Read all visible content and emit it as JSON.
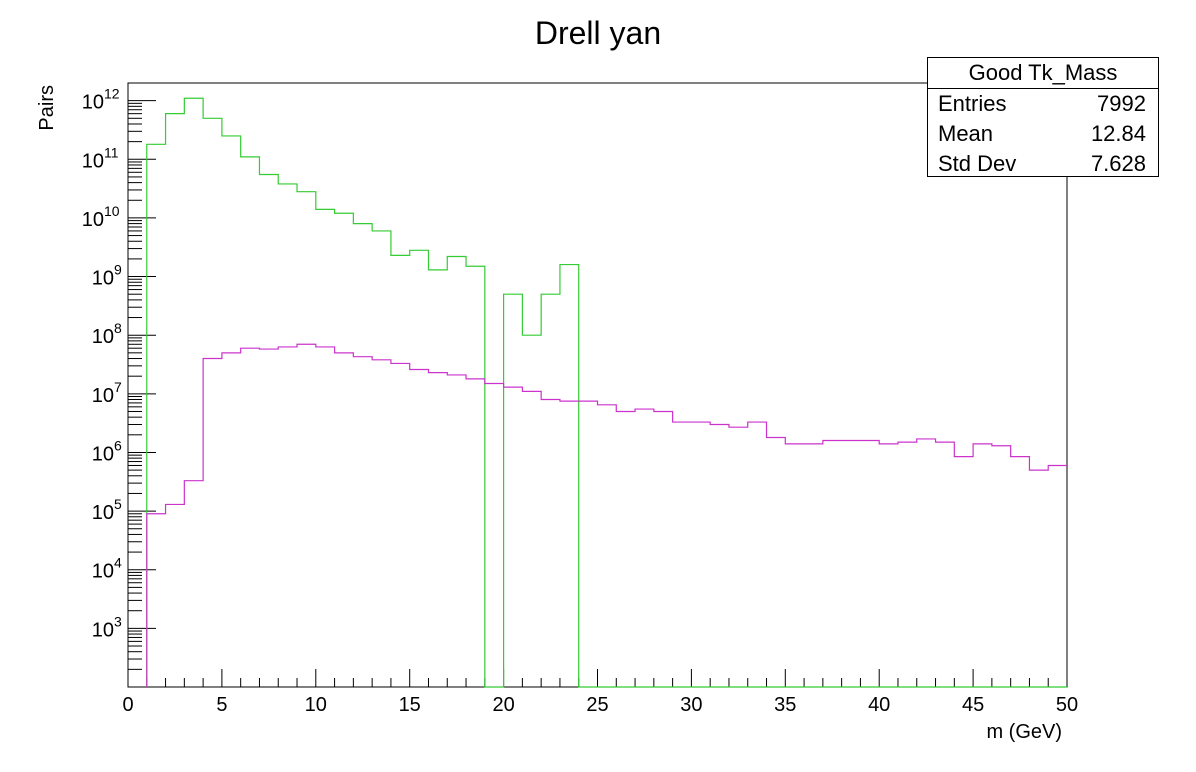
{
  "chart_data": {
    "type": "line",
    "title": "Drell yan",
    "xlabel": "m (GeV)",
    "ylabel": "Pairs",
    "xlim": [
      0,
      50
    ],
    "ylim": [
      100,
      2000000000000.0
    ],
    "yscale": "log",
    "bin_width": 1,
    "x_ticks": [
      "0",
      "5",
      "10",
      "15",
      "20",
      "25",
      "30",
      "35",
      "40",
      "45",
      "50"
    ],
    "y_ticks": [
      {
        "base": "10",
        "exp": "3"
      },
      {
        "base": "10",
        "exp": "4"
      },
      {
        "base": "10",
        "exp": "5"
      },
      {
        "base": "10",
        "exp": "6"
      },
      {
        "base": "10",
        "exp": "7"
      },
      {
        "base": "10",
        "exp": "8"
      },
      {
        "base": "10",
        "exp": "9"
      },
      {
        "base": "10",
        "exp": "10"
      },
      {
        "base": "10",
        "exp": "11"
      },
      {
        "base": "10",
        "exp": "12"
      }
    ],
    "grid": false,
    "series": [
      {
        "color": "#33cc33",
        "bins_start": 1,
        "values": [
          180000000000.0,
          600000000000.0,
          1100000000000.0,
          500000000000.0,
          250000000000.0,
          110000000000.0,
          55000000000.0,
          38000000000.0,
          28000000000.0,
          14000000000.0,
          12000000000.0,
          8000000000.0,
          6000000000.0,
          2300000000.0,
          2800000000.0,
          1300000000.0,
          2200000000.0,
          1500000000.0,
          0,
          500000000.0,
          100000000.0,
          500000000.0,
          1600000000.0,
          0,
          0,
          0,
          0,
          0,
          0,
          0,
          0,
          0,
          0,
          0,
          0,
          0,
          0,
          0,
          0,
          0,
          0,
          0,
          0,
          0,
          0,
          0,
          0,
          0,
          0
        ]
      },
      {
        "color": "#cc33cc",
        "bins_start": 1,
        "values": [
          90000.0,
          130000.0,
          330000.0,
          40000000.0,
          50000000.0,
          60000000.0,
          58000000.0,
          63000000.0,
          70000000.0,
          63000000.0,
          50000000.0,
          43000000.0,
          38000000.0,
          33000000.0,
          26000000.0,
          23000000.0,
          21000000.0,
          18000000.0,
          15000000.0,
          13000000.0,
          11000000.0,
          8000000.0,
          7500000.0,
          7500000.0,
          6500000.0,
          5000000.0,
          5500000.0,
          5000000.0,
          3300000.0,
          3300000.0,
          3000000.0,
          2700000.0,
          3300000.0,
          1800000.0,
          1400000.0,
          1400000.0,
          1600000.0,
          1600000.0,
          1600000.0,
          1400000.0,
          1500000.0,
          1700000.0,
          1500000.0,
          850000.0,
          1400000.0,
          1300000.0,
          850000.0,
          500000.0,
          600000.0
        ]
      }
    ]
  },
  "stats": {
    "title": "Good Tk_Mass",
    "rows": [
      {
        "label": "Entries",
        "value": "7992"
      },
      {
        "label": "Mean",
        "value": "12.84"
      },
      {
        "label": "Std Dev",
        "value": "7.628"
      }
    ]
  }
}
